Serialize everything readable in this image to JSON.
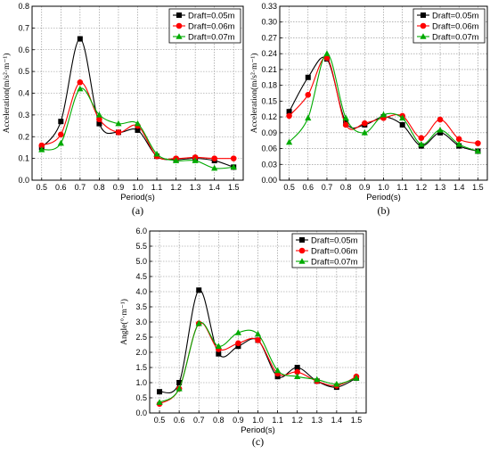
{
  "chart_data": [
    {
      "type": "line",
      "caption": "(a)",
      "xlabel": "Period(s)",
      "ylabel": "Acceleration(m/s²·m⁻¹)",
      "ylim": [
        0,
        0.8
      ],
      "yticks": [
        0.0,
        0.1,
        0.2,
        0.3,
        0.4,
        0.5,
        0.6,
        0.7,
        0.8
      ],
      "ytick_labels": [
        "0.0",
        "0.1",
        "0.2",
        "0.3",
        "0.4",
        "0.5",
        "0.6",
        "0.7",
        "0.8"
      ],
      "xlim": [
        0.45,
        1.55
      ],
      "x": [
        0.5,
        0.6,
        0.7,
        0.8,
        0.9,
        1.0,
        1.1,
        1.2,
        1.3,
        1.4,
        1.5
      ],
      "xtick_labels": [
        "0.5",
        "0.6",
        "0.7",
        "0.8",
        "0.9",
        "1.0",
        "1.1",
        "1.2",
        "1.3",
        "1.4",
        "1.5"
      ],
      "grid": true,
      "legend": "top-right",
      "series": [
        {
          "name": "Draft=0.05m",
          "color": "#000000",
          "marker": "square",
          "values": [
            0.15,
            0.27,
            0.65,
            0.26,
            0.22,
            0.23,
            0.11,
            0.095,
            0.1,
            0.09,
            0.06
          ]
        },
        {
          "name": "Draft=0.06m",
          "color": "#ff0000",
          "marker": "circle",
          "values": [
            0.16,
            0.21,
            0.45,
            0.28,
            0.22,
            0.25,
            0.11,
            0.1,
            0.105,
            0.1,
            0.1
          ]
        },
        {
          "name": "Draft=0.07m",
          "color": "#00aa00",
          "marker": "triangle",
          "values": [
            0.14,
            0.17,
            0.42,
            0.3,
            0.26,
            0.26,
            0.12,
            0.09,
            0.09,
            0.055,
            0.06
          ]
        }
      ]
    },
    {
      "type": "line",
      "caption": "(b)",
      "xlabel": "Period(s)",
      "ylabel": "Acceleration(m/s²·m⁻¹)",
      "ylim": [
        0,
        0.33
      ],
      "yticks": [
        0.0,
        0.03,
        0.06,
        0.09,
        0.12,
        0.15,
        0.18,
        0.21,
        0.24,
        0.27,
        0.3,
        0.33
      ],
      "ytick_labels": [
        "0.00",
        "0.03",
        "0.06",
        "0.09",
        "0.12",
        "0.15",
        "0.18",
        "0.21",
        "0.24",
        "0.27",
        "0.30",
        "0.33"
      ],
      "xlim": [
        0.45,
        1.55
      ],
      "x": [
        0.5,
        0.6,
        0.7,
        0.8,
        0.9,
        1.0,
        1.1,
        1.2,
        1.3,
        1.4,
        1.5
      ],
      "xtick_labels": [
        "0.5",
        "0.6",
        "0.7",
        "0.8",
        "0.9",
        "1.0",
        "1.1",
        "1.2",
        "1.3",
        "1.4",
        "1.5"
      ],
      "grid": true,
      "legend": "top-right",
      "series": [
        {
          "name": "Draft=0.05m",
          "color": "#000000",
          "marker": "square",
          "values": [
            0.13,
            0.195,
            0.23,
            0.11,
            0.105,
            0.12,
            0.105,
            0.065,
            0.09,
            0.065,
            0.055
          ]
        },
        {
          "name": "Draft=0.06m",
          "color": "#ff0000",
          "marker": "circle",
          "values": [
            0.122,
            0.162,
            0.232,
            0.105,
            0.108,
            0.118,
            0.122,
            0.08,
            0.115,
            0.078,
            0.07
          ]
        },
        {
          "name": "Draft=0.07m",
          "color": "#00aa00",
          "marker": "triangle",
          "values": [
            0.072,
            0.118,
            0.24,
            0.118,
            0.09,
            0.124,
            0.118,
            0.068,
            0.095,
            0.068,
            0.055
          ]
        }
      ]
    },
    {
      "type": "line",
      "caption": "(c)",
      "xlabel": "Period(s)",
      "ylabel": "Angle(°·m⁻¹)",
      "ylim": [
        0,
        6.0
      ],
      "yticks": [
        0.0,
        0.5,
        1.0,
        1.5,
        2.0,
        2.5,
        3.0,
        3.5,
        4.0,
        4.5,
        5.0,
        5.5,
        6.0
      ],
      "ytick_labels": [
        "0.0",
        "0.5",
        "1.0",
        "1.5",
        "2.0",
        "2.5",
        "3.0",
        "3.5",
        "4.0",
        "4.5",
        "5.0",
        "5.5",
        "6.0"
      ],
      "xlim": [
        0.45,
        1.55
      ],
      "x": [
        0.5,
        0.6,
        0.7,
        0.8,
        0.9,
        1.0,
        1.1,
        1.2,
        1.3,
        1.4,
        1.5
      ],
      "xtick_labels": [
        "0.5",
        "0.6",
        "0.7",
        "0.8",
        "0.9",
        "1.0",
        "1.1",
        "1.2",
        "1.3",
        "1.4",
        "1.5"
      ],
      "grid": true,
      "legend": "top-right",
      "series": [
        {
          "name": "Draft=0.05m",
          "color": "#000000",
          "marker": "square",
          "values": [
            0.7,
            1.0,
            4.05,
            1.95,
            2.2,
            2.4,
            1.2,
            1.5,
            1.05,
            0.85,
            1.15
          ]
        },
        {
          "name": "Draft=0.06m",
          "color": "#ff0000",
          "marker": "circle",
          "values": [
            0.3,
            0.8,
            2.95,
            2.1,
            2.3,
            2.4,
            1.3,
            1.35,
            1.05,
            0.9,
            1.2
          ]
        },
        {
          "name": "Draft=0.07m",
          "color": "#00aa00",
          "marker": "triangle",
          "values": [
            0.35,
            0.8,
            2.95,
            2.2,
            2.65,
            2.6,
            1.4,
            1.2,
            1.1,
            0.95,
            1.15
          ]
        }
      ]
    }
  ]
}
